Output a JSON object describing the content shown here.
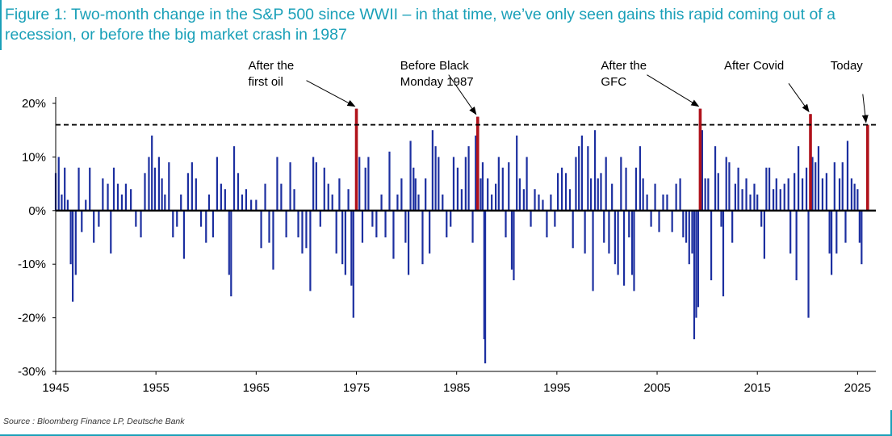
{
  "title": "Figure 1: Two-month change in the S&P 500 since WWII – in that time, we’ve only seen gains this rapid coming out of a recession, or before the big market crash in 1987",
  "source": "Source : Bloomberg Finance LP, Deutsche Bank",
  "colors": {
    "accent": "#1aa0b8",
    "bars": "#1c2fa0",
    "highlight": "#b0121b"
  },
  "chart_data": {
    "type": "bar",
    "title": "",
    "xlabel": "",
    "ylabel": "",
    "xlim": [
      1945,
      2026.5
    ],
    "ylim": [
      -30,
      20
    ],
    "x_ticks": [
      1945,
      1955,
      1965,
      1975,
      1985,
      1995,
      2005,
      2015,
      2025
    ],
    "y_ticks": [
      20,
      10,
      0,
      -10,
      -20,
      -30
    ],
    "y_tick_labels": [
      "20%",
      "10%",
      "0%",
      "-10%",
      "-20%",
      "-30%"
    ],
    "reference_line": {
      "value": 16,
      "style": "dashed"
    },
    "grid": false,
    "anchors": [
      [
        1945.0,
        7
      ],
      [
        1945.3,
        10
      ],
      [
        1945.6,
        3
      ],
      [
        1945.9,
        8
      ],
      [
        1946.2,
        2
      ],
      [
        1946.5,
        -10
      ],
      [
        1946.7,
        -17
      ],
      [
        1947.0,
        -12
      ],
      [
        1947.3,
        8
      ],
      [
        1947.6,
        -4
      ],
      [
        1948.0,
        2
      ],
      [
        1948.4,
        8
      ],
      [
        1948.8,
        -6
      ],
      [
        1949.3,
        -3
      ],
      [
        1949.7,
        6
      ],
      [
        1950.2,
        5
      ],
      [
        1950.5,
        -8
      ],
      [
        1950.8,
        8
      ],
      [
        1951.2,
        5
      ],
      [
        1951.6,
        3
      ],
      [
        1952.0,
        5
      ],
      [
        1952.5,
        4
      ],
      [
        1953.0,
        -3
      ],
      [
        1953.5,
        -5
      ],
      [
        1953.9,
        7
      ],
      [
        1954.3,
        10
      ],
      [
        1954.6,
        14
      ],
      [
        1954.9,
        8
      ],
      [
        1955.3,
        10
      ],
      [
        1955.6,
        6
      ],
      [
        1955.9,
        3
      ],
      [
        1956.3,
        9
      ],
      [
        1956.7,
        -5
      ],
      [
        1957.1,
        -3
      ],
      [
        1957.5,
        3
      ],
      [
        1957.8,
        -9
      ],
      [
        1958.2,
        7
      ],
      [
        1958.6,
        9
      ],
      [
        1959.0,
        6
      ],
      [
        1959.5,
        -3
      ],
      [
        1960.0,
        -6
      ],
      [
        1960.3,
        3
      ],
      [
        1960.7,
        -5
      ],
      [
        1961.1,
        10
      ],
      [
        1961.5,
        5
      ],
      [
        1961.9,
        4
      ],
      [
        1962.3,
        -12
      ],
      [
        1962.5,
        -16
      ],
      [
        1962.8,
        12
      ],
      [
        1963.2,
        7
      ],
      [
        1963.6,
        3
      ],
      [
        1964.0,
        4
      ],
      [
        1964.5,
        2
      ],
      [
        1965.0,
        2
      ],
      [
        1965.5,
        -7
      ],
      [
        1965.9,
        5
      ],
      [
        1966.3,
        -6
      ],
      [
        1966.7,
        -11
      ],
      [
        1967.1,
        10
      ],
      [
        1967.5,
        5
      ],
      [
        1968.0,
        -5
      ],
      [
        1968.4,
        9
      ],
      [
        1968.8,
        4
      ],
      [
        1969.2,
        -5
      ],
      [
        1969.6,
        -8
      ],
      [
        1970.0,
        -7
      ],
      [
        1970.4,
        -15
      ],
      [
        1970.7,
        10
      ],
      [
        1971.0,
        9
      ],
      [
        1971.4,
        -3
      ],
      [
        1971.8,
        8
      ],
      [
        1972.2,
        5
      ],
      [
        1972.6,
        3
      ],
      [
        1973.0,
        -8
      ],
      [
        1973.3,
        6
      ],
      [
        1973.6,
        -10
      ],
      [
        1973.9,
        -12
      ],
      [
        1974.2,
        4
      ],
      [
        1974.5,
        -14
      ],
      [
        1974.7,
        -20
      ],
      [
        1975.0,
        19
      ],
      [
        1975.3,
        10
      ],
      [
        1975.6,
        -6
      ],
      [
        1975.9,
        8
      ],
      [
        1976.2,
        10
      ],
      [
        1976.6,
        -3
      ],
      [
        1977.0,
        -5
      ],
      [
        1977.5,
        3
      ],
      [
        1977.9,
        -5
      ],
      [
        1978.3,
        11
      ],
      [
        1978.7,
        -9
      ],
      [
        1979.1,
        3
      ],
      [
        1979.5,
        6
      ],
      [
        1979.9,
        -6
      ],
      [
        1980.2,
        -12
      ],
      [
        1980.4,
        13
      ],
      [
        1980.7,
        8
      ],
      [
        1980.9,
        6
      ],
      [
        1981.2,
        3
      ],
      [
        1981.6,
        -10
      ],
      [
        1981.9,
        6
      ],
      [
        1982.3,
        -8
      ],
      [
        1982.6,
        15
      ],
      [
        1982.9,
        12
      ],
      [
        1983.2,
        10
      ],
      [
        1983.6,
        3
      ],
      [
        1984.0,
        -5
      ],
      [
        1984.4,
        -3
      ],
      [
        1984.7,
        10
      ],
      [
        1985.1,
        8
      ],
      [
        1985.5,
        4
      ],
      [
        1985.9,
        10
      ],
      [
        1986.2,
        12
      ],
      [
        1986.6,
        -6
      ],
      [
        1986.9,
        14
      ],
      [
        1987.1,
        17.5
      ],
      [
        1987.4,
        6
      ],
      [
        1987.6,
        9
      ],
      [
        1987.75,
        -24
      ],
      [
        1987.85,
        -28.5
      ],
      [
        1988.1,
        6
      ],
      [
        1988.5,
        3
      ],
      [
        1988.9,
        5
      ],
      [
        1989.2,
        10
      ],
      [
        1989.6,
        8
      ],
      [
        1989.9,
        -5
      ],
      [
        1990.2,
        9
      ],
      [
        1990.5,
        -11
      ],
      [
        1990.7,
        -13
      ],
      [
        1991.0,
        14
      ],
      [
        1991.3,
        6
      ],
      [
        1991.7,
        4
      ],
      [
        1992.0,
        10
      ],
      [
        1992.4,
        -3
      ],
      [
        1992.8,
        4
      ],
      [
        1993.2,
        3
      ],
      [
        1993.6,
        2
      ],
      [
        1994.0,
        -5
      ],
      [
        1994.4,
        3
      ],
      [
        1994.8,
        -3
      ],
      [
        1995.1,
        7
      ],
      [
        1995.5,
        8
      ],
      [
        1995.9,
        7
      ],
      [
        1996.3,
        4
      ],
      [
        1996.6,
        -7
      ],
      [
        1996.9,
        10
      ],
      [
        1997.2,
        12
      ],
      [
        1997.5,
        14
      ],
      [
        1997.8,
        -8
      ],
      [
        1998.1,
        12
      ],
      [
        1998.4,
        6
      ],
      [
        1998.6,
        -15
      ],
      [
        1998.8,
        15
      ],
      [
        1999.1,
        6
      ],
      [
        1999.4,
        7
      ],
      [
        1999.7,
        -6
      ],
      [
        1999.9,
        10
      ],
      [
        2000.2,
        -8
      ],
      [
        2000.5,
        5
      ],
      [
        2000.8,
        -10
      ],
      [
        2001.1,
        -12
      ],
      [
        2001.4,
        10
      ],
      [
        2001.7,
        -14
      ],
      [
        2001.9,
        8
      ],
      [
        2002.2,
        -5
      ],
      [
        2002.5,
        -12
      ],
      [
        2002.7,
        -15
      ],
      [
        2002.9,
        8
      ],
      [
        2003.3,
        12
      ],
      [
        2003.6,
        6
      ],
      [
        2004.0,
        3
      ],
      [
        2004.4,
        -3
      ],
      [
        2004.8,
        5
      ],
      [
        2005.2,
        -4
      ],
      [
        2005.6,
        3
      ],
      [
        2006.0,
        3
      ],
      [
        2006.5,
        -4
      ],
      [
        2006.9,
        5
      ],
      [
        2007.3,
        6
      ],
      [
        2007.6,
        -5
      ],
      [
        2007.9,
        -6
      ],
      [
        2008.2,
        -10
      ],
      [
        2008.5,
        -8
      ],
      [
        2008.7,
        -24
      ],
      [
        2008.9,
        -20
      ],
      [
        2009.1,
        -18
      ],
      [
        2009.3,
        19
      ],
      [
        2009.5,
        15
      ],
      [
        2009.8,
        6
      ],
      [
        2010.1,
        6
      ],
      [
        2010.4,
        -13
      ],
      [
        2010.8,
        12
      ],
      [
        2011.1,
        7
      ],
      [
        2011.4,
        -3
      ],
      [
        2011.6,
        -16
      ],
      [
        2011.9,
        10
      ],
      [
        2012.2,
        9
      ],
      [
        2012.5,
        -6
      ],
      [
        2012.8,
        5
      ],
      [
        2013.1,
        8
      ],
      [
        2013.5,
        4
      ],
      [
        2013.9,
        6
      ],
      [
        2014.3,
        3
      ],
      [
        2014.7,
        5
      ],
      [
        2015.0,
        3
      ],
      [
        2015.4,
        -3
      ],
      [
        2015.7,
        -9
      ],
      [
        2015.9,
        8
      ],
      [
        2016.2,
        8
      ],
      [
        2016.6,
        4
      ],
      [
        2016.9,
        6
      ],
      [
        2017.3,
        4
      ],
      [
        2017.7,
        5
      ],
      [
        2018.1,
        6
      ],
      [
        2018.3,
        -8
      ],
      [
        2018.7,
        7
      ],
      [
        2018.9,
        -13
      ],
      [
        2019.1,
        12
      ],
      [
        2019.5,
        6
      ],
      [
        2019.9,
        8
      ],
      [
        2020.1,
        -20
      ],
      [
        2020.3,
        18
      ],
      [
        2020.5,
        10
      ],
      [
        2020.8,
        9
      ],
      [
        2021.1,
        12
      ],
      [
        2021.5,
        6
      ],
      [
        2021.9,
        7
      ],
      [
        2022.2,
        -8
      ],
      [
        2022.4,
        -12
      ],
      [
        2022.7,
        9
      ],
      [
        2022.9,
        -8
      ],
      [
        2023.2,
        6
      ],
      [
        2023.5,
        9
      ],
      [
        2023.8,
        -6
      ],
      [
        2024.0,
        13
      ],
      [
        2024.4,
        6
      ],
      [
        2024.7,
        5
      ],
      [
        2025.0,
        4
      ],
      [
        2025.2,
        -6
      ],
      [
        2025.4,
        -10
      ],
      [
        2026.0,
        16
      ]
    ],
    "highlighted": [
      {
        "x": 1975.0,
        "value": 19
      },
      {
        "x": 1987.1,
        "value": 17.5
      },
      {
        "x": 2009.3,
        "value": 19
      },
      {
        "x": 2020.3,
        "value": 18
      },
      {
        "x": 2026.0,
        "value": 16
      }
    ],
    "annotations": [
      {
        "lines": [
          "After the",
          "first oil"
        ],
        "x": 1975.0
      },
      {
        "lines": [
          "Before Black",
          "Monday 1987"
        ],
        "x": 1987.1
      },
      {
        "lines": [
          "After the",
          "GFC"
        ],
        "x": 2009.3
      },
      {
        "lines": [
          "After Covid"
        ],
        "x": 2020.3
      },
      {
        "lines": [
          "Today"
        ],
        "x": 2026.0
      }
    ]
  }
}
